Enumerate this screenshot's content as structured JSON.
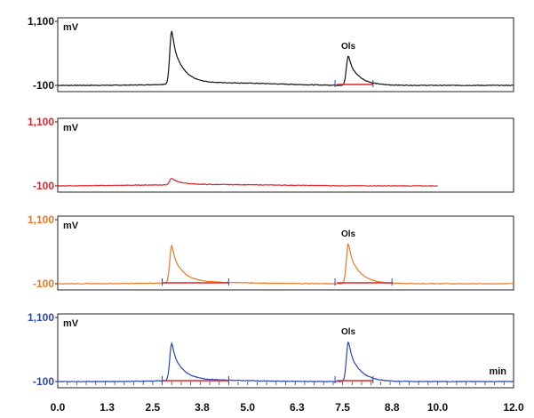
{
  "chart_data": {
    "type": "line",
    "x_unit": "min",
    "x_ticks": [
      "0.0",
      "1.3",
      "2.5",
      "3.8",
      "5.0",
      "6.3",
      "7.5",
      "8.8",
      "10.0",
      "12.0"
    ],
    "xlim": [
      0,
      12.0
    ],
    "panels": [
      {
        "color": "#111111",
        "y_unit": "mV",
        "ylim": [
          -100,
          1100
        ],
        "y_ticks": [
          "1,100",
          "-100"
        ],
        "x_end": 12.0,
        "peaks": [
          {
            "x": 3.0,
            "height": 1000,
            "label": ""
          },
          {
            "x": 7.65,
            "height": 550,
            "label": "Ols"
          }
        ],
        "baseline_marks": [
          {
            "from": 7.35,
            "to": 8.3,
            "color": "#e0242b"
          }
        ],
        "tick_marks": [
          7.3,
          8.3
        ]
      },
      {
        "color": "#e0242b",
        "y_unit": "mV",
        "ylim": [
          -100,
          1100
        ],
        "y_ticks": [
          "1,100",
          "-100"
        ],
        "x_end": 10.0,
        "peaks": [
          {
            "x": 3.0,
            "height": 120,
            "label": ""
          }
        ],
        "baseline_marks": [],
        "tick_marks": []
      },
      {
        "color": "#ee7722",
        "y_unit": "mV",
        "ylim": [
          -100,
          1100
        ],
        "y_ticks": [
          "1,100",
          "-100"
        ],
        "x_end": 12.0,
        "peaks": [
          {
            "x": 3.0,
            "height": 700,
            "label": ""
          },
          {
            "x": 7.65,
            "height": 750,
            "label": "Ols"
          }
        ],
        "baseline_marks": [
          {
            "from": 2.75,
            "to": 4.5,
            "color": "#e0242b"
          },
          {
            "from": 7.35,
            "to": 8.8,
            "color": "#e0242b"
          }
        ],
        "tick_marks": [
          2.75,
          4.5,
          7.3,
          8.8
        ]
      },
      {
        "color": "#2a46b8",
        "y_unit": "mV",
        "ylim": [
          -100,
          1100
        ],
        "y_ticks": [
          "1,100",
          "-100"
        ],
        "x_end": 12.0,
        "peaks": [
          {
            "x": 3.0,
            "height": 700,
            "label": ""
          },
          {
            "x": 7.65,
            "height": 750,
            "label": "Ols"
          }
        ],
        "baseline_marks": [
          {
            "from": 2.75,
            "to": 4.5,
            "color": "#e0242b"
          },
          {
            "from": 7.35,
            "to": 8.3,
            "color": "#e0242b"
          }
        ],
        "tick_marks": [
          2.75,
          4.5,
          7.3,
          8.3
        ],
        "show_x_unit": true
      }
    ]
  }
}
